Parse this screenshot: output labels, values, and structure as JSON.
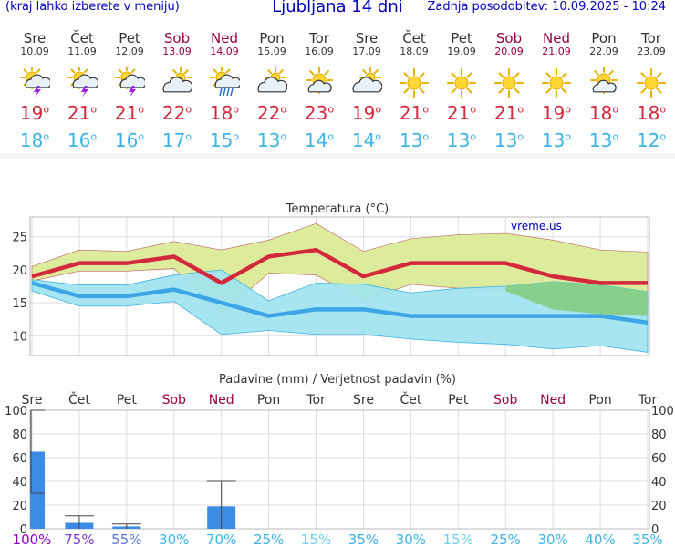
{
  "header": {
    "note": "(kraj lahko izberete v meniju)",
    "title": "Ljubljana 14 dni",
    "updated": "Zadnja posodobitev: 10.09.2025 - 10:24"
  },
  "days": [
    {
      "name": "Sre",
      "date": "10.09",
      "weekend": false,
      "icon": "thunderstorm-sun-icon",
      "tmax": "19",
      "tmin": "18"
    },
    {
      "name": "Čet",
      "date": "11.09",
      "weekend": false,
      "icon": "thunderstorm-sun-icon",
      "tmax": "21",
      "tmin": "16"
    },
    {
      "name": "Pet",
      "date": "12.09",
      "weekend": false,
      "icon": "thunderstorm-sun-icon",
      "tmax": "21",
      "tmin": "16"
    },
    {
      "name": "Sob",
      "date": "13.09",
      "weekend": true,
      "icon": "partly-cloudy-icon",
      "tmax": "22",
      "tmin": "17"
    },
    {
      "name": "Ned",
      "date": "14.09",
      "weekend": true,
      "icon": "rain-sun-icon",
      "tmax": "18",
      "tmin": "15"
    },
    {
      "name": "Pon",
      "date": "15.09",
      "weekend": false,
      "icon": "partly-cloudy-icon",
      "tmax": "22",
      "tmin": "13"
    },
    {
      "name": "Tor",
      "date": "16.09",
      "weekend": false,
      "icon": "mostly-sunny-icon",
      "tmax": "23",
      "tmin": "14"
    },
    {
      "name": "Sre",
      "date": "17.09",
      "weekend": false,
      "icon": "partly-cloudy-icon",
      "tmax": "19",
      "tmin": "14"
    },
    {
      "name": "Čet",
      "date": "18.09",
      "weekend": false,
      "icon": "sunny-icon",
      "tmax": "21",
      "tmin": "13"
    },
    {
      "name": "Pet",
      "date": "19.09",
      "weekend": false,
      "icon": "sunny-icon",
      "tmax": "21",
      "tmin": "13"
    },
    {
      "name": "Sob",
      "date": "20.09",
      "weekend": true,
      "icon": "sunny-icon",
      "tmax": "21",
      "tmin": "13"
    },
    {
      "name": "Ned",
      "date": "21.09",
      "weekend": true,
      "icon": "sunny-icon",
      "tmax": "19",
      "tmin": "13"
    },
    {
      "name": "Pon",
      "date": "22.09",
      "weekend": false,
      "icon": "mostly-sunny-icon",
      "tmax": "18",
      "tmin": "13"
    },
    {
      "name": "Tor",
      "date": "23.09",
      "weekend": false,
      "icon": "sunny-icon",
      "tmax": "18",
      "tmin": "12"
    }
  ],
  "colors": {
    "max_line": "#d4283c",
    "min_line": "#3ca5e6",
    "max_band": "#dcec9c",
    "min_band": "#a0e4f0",
    "overlap_band": "#86d08c",
    "precip_bar": "#3c8ce6",
    "weekend_text": "#9b0040",
    "prob_colors": [
      "#8a00c8",
      "#7a3ad0",
      "#5a78dc",
      "#3cb4e6",
      "#3cb4e6",
      "#3cb4e6",
      "#6cd0f0",
      "#3cb4e6",
      "#3cb4e6",
      "#6cd0f0",
      "#3cb4e6",
      "#3cb4e6",
      "#3cb4e6",
      "#3cb4e6"
    ]
  },
  "chart_data": [
    {
      "type": "line",
      "title": "Temperatura (°C)",
      "watermark": "vreme.us",
      "categories": [
        "Sre",
        "Čet",
        "Pet",
        "Sob",
        "Ned",
        "Pon",
        "Tor",
        "Sre",
        "Čet",
        "Pet",
        "Sob",
        "Ned",
        "Pon",
        "Tor"
      ],
      "ylim": [
        7,
        28
      ],
      "yticks": [
        10,
        15,
        20,
        25
      ],
      "series": [
        {
          "values": [
            19,
            21,
            21,
            22,
            18,
            22,
            23,
            19,
            21,
            21,
            21,
            19,
            18,
            18
          ]
        },
        {
          "values": [
            18,
            16,
            16,
            17,
            15,
            13,
            14,
            14,
            13,
            13,
            13,
            13,
            13,
            12
          ]
        }
      ],
      "bands": {
        "max_upper": [
          20.5,
          23,
          22.8,
          24.3,
          23,
          24.5,
          27,
          22.8,
          24.7,
          25.3,
          25.5,
          24.5,
          23,
          22.7
        ],
        "max_lower": [
          18.3,
          19.8,
          19.8,
          20.2,
          13.3,
          19.5,
          19.2,
          15.3,
          17.8,
          17.2,
          16.8,
          14,
          13.3,
          13
        ],
        "min_upper": [
          18.5,
          17.7,
          17.7,
          19.2,
          20,
          15.3,
          18,
          17.8,
          16.5,
          17.2,
          17.5,
          18.2,
          17.7,
          16.7
        ],
        "min_lower": [
          16.8,
          14.5,
          14.5,
          15.2,
          10.2,
          10.8,
          10.2,
          10.2,
          9.5,
          9,
          8.7,
          8,
          8.5,
          7.5
        ]
      },
      "grid": true
    },
    {
      "type": "bar",
      "title": "Padavine (mm) / Verjetnost padavin (%)",
      "categories": [
        "Sre",
        "Čet",
        "Pet",
        "Sob",
        "Ned",
        "Pon",
        "Tor",
        "Sre",
        "Čet",
        "Pet",
        "Sob",
        "Ned",
        "Pon",
        "Tor"
      ],
      "ylim": [
        0,
        100
      ],
      "yticks": [
        0,
        20,
        40,
        60,
        80,
        100
      ],
      "values": [
        65,
        5,
        2,
        0,
        19,
        0,
        0,
        0,
        0,
        0,
        0,
        0,
        0,
        0
      ],
      "error_high": [
        100,
        11,
        4,
        0,
        40,
        0,
        0,
        0,
        0,
        0,
        0,
        0,
        0,
        0
      ],
      "error_low": [
        30,
        0,
        0,
        0,
        0,
        0,
        0,
        0,
        0,
        0,
        0,
        0,
        0,
        0
      ],
      "probability_labels": [
        "100%",
        "75%",
        "55%",
        "30%",
        "70%",
        "25%",
        "15%",
        "35%",
        "30%",
        "15%",
        "25%",
        "30%",
        "40%",
        "35%"
      ],
      "grid": true
    }
  ]
}
